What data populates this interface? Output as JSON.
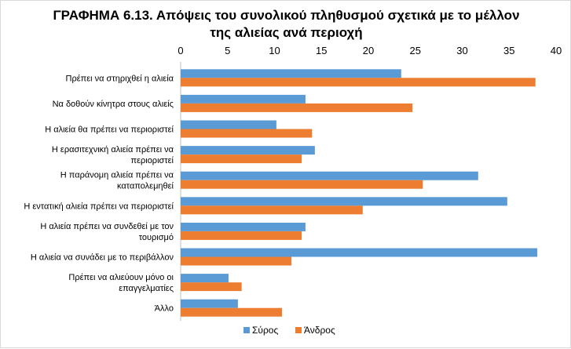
{
  "chart_data": {
    "type": "bar",
    "orientation": "horizontal",
    "title_line1": "ΓΡΑΦΗΜΑ 6.13. Απόψεις του συνολικού πληθυσμού σχετικά με το μέλλον",
    "title_line2": "της αλιείας ανά περιοχή",
    "categories": [
      [
        "Πρέπει να στηριχθεί η αλιεία"
      ],
      [
        "Να δοθούν κίνητρα στους αλιείς"
      ],
      [
        "Η αλιεία θα πρέπει να περιοριστεί"
      ],
      [
        "Η ερασιτεχνική αλιεία πρέπει να",
        "περιοριστεί"
      ],
      [
        "Η παράνομη αλιεία πρέπει να",
        "καταπολεμηθεί"
      ],
      [
        "Η εντατική αλιεία πρέπει να περιοριστεί"
      ],
      [
        "Η αλιεία πρέπει να συνδεθεί με τον",
        "τουρισμό"
      ],
      [
        "Η αλιεία να συνάδει με το περιβάλλον"
      ],
      [
        "Πρέπει να αλιεύουν μόνο οι",
        "επαγγελματίες"
      ],
      [
        "Άλλο"
      ]
    ],
    "series": [
      {
        "name": "Σύρος",
        "color": "#5B9BD5",
        "values": [
          23.5,
          13.3,
          10.2,
          14.3,
          31.7,
          34.8,
          13.3,
          38.0,
          5.1,
          6.1
        ]
      },
      {
        "name": "Άνδρος",
        "color": "#ED7D31",
        "values": [
          37.8,
          24.7,
          14.0,
          12.9,
          25.8,
          19.4,
          12.9,
          11.8,
          6.5,
          10.8
        ]
      }
    ],
    "xlim": [
      0,
      40
    ],
    "xticks": [
      "0",
      "5",
      "10",
      "15",
      "20",
      "25",
      "30",
      "35",
      "40"
    ],
    "xaxis_position": "top",
    "grid": false,
    "legend_position": "bottom"
  }
}
